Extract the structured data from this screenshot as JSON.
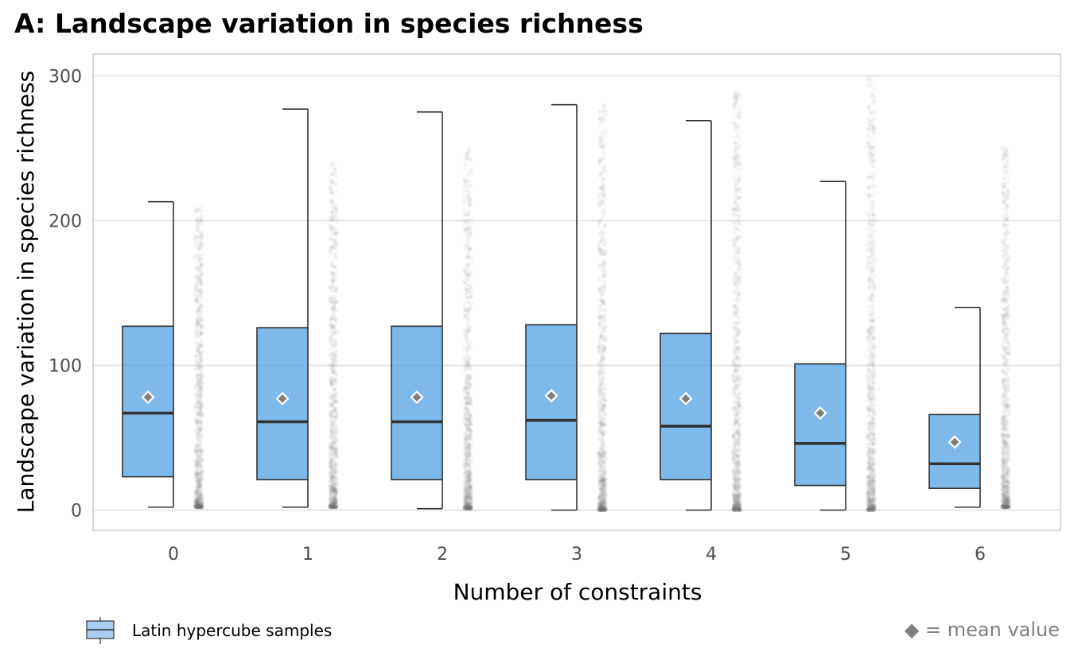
{
  "chart_data": {
    "type": "boxplot",
    "title": "A: Landscape variation in species richness",
    "xlabel": "Number of constraints",
    "ylabel": "Landscape variation in species richness",
    "ylim": [
      -14,
      315
    ],
    "yticks": [
      0,
      100,
      200,
      300
    ],
    "grid": "horizontal",
    "categories": [
      "0",
      "1",
      "2",
      "3",
      "4",
      "5",
      "6"
    ],
    "series": [
      {
        "name": "Latin hypercube samples",
        "color": "#5aa5e6",
        "boxes": [
          {
            "category": "0",
            "min": 2,
            "q1": 23,
            "median": 67,
            "q3": 127,
            "max": 213,
            "mean": 78
          },
          {
            "category": "1",
            "min": 2,
            "q1": 21,
            "median": 61,
            "q3": 126,
            "max": 277,
            "mean": 77
          },
          {
            "category": "2",
            "min": 1,
            "q1": 21,
            "median": 61,
            "q3": 127,
            "max": 275,
            "mean": 78
          },
          {
            "category": "3",
            "min": 0,
            "q1": 21,
            "median": 62,
            "q3": 128,
            "max": 280,
            "mean": 79
          },
          {
            "category": "4",
            "min": 0,
            "q1": 21,
            "median": 58,
            "q3": 122,
            "max": 269,
            "mean": 77
          },
          {
            "category": "5",
            "min": 0,
            "q1": 17,
            "median": 46,
            "q3": 101,
            "max": 227,
            "mean": 67
          },
          {
            "category": "6",
            "min": 2,
            "q1": 15,
            "median": 32,
            "q3": 66,
            "max": 140,
            "mean": 47
          }
        ],
        "points_range": [
          {
            "category": "0",
            "min": 2,
            "max": 210
          },
          {
            "category": "1",
            "min": 2,
            "max": 240
          },
          {
            "category": "2",
            "min": 1,
            "max": 250
          },
          {
            "category": "3",
            "min": 0,
            "max": 280
          },
          {
            "category": "4",
            "min": 0,
            "max": 290
          },
          {
            "category": "5",
            "min": 0,
            "max": 300
          },
          {
            "category": "6",
            "min": 2,
            "max": 250
          }
        ]
      }
    ],
    "legend": {
      "position": "bottom-left",
      "label": "Latin hypercube samples"
    },
    "annotation": "◆ = mean value"
  }
}
